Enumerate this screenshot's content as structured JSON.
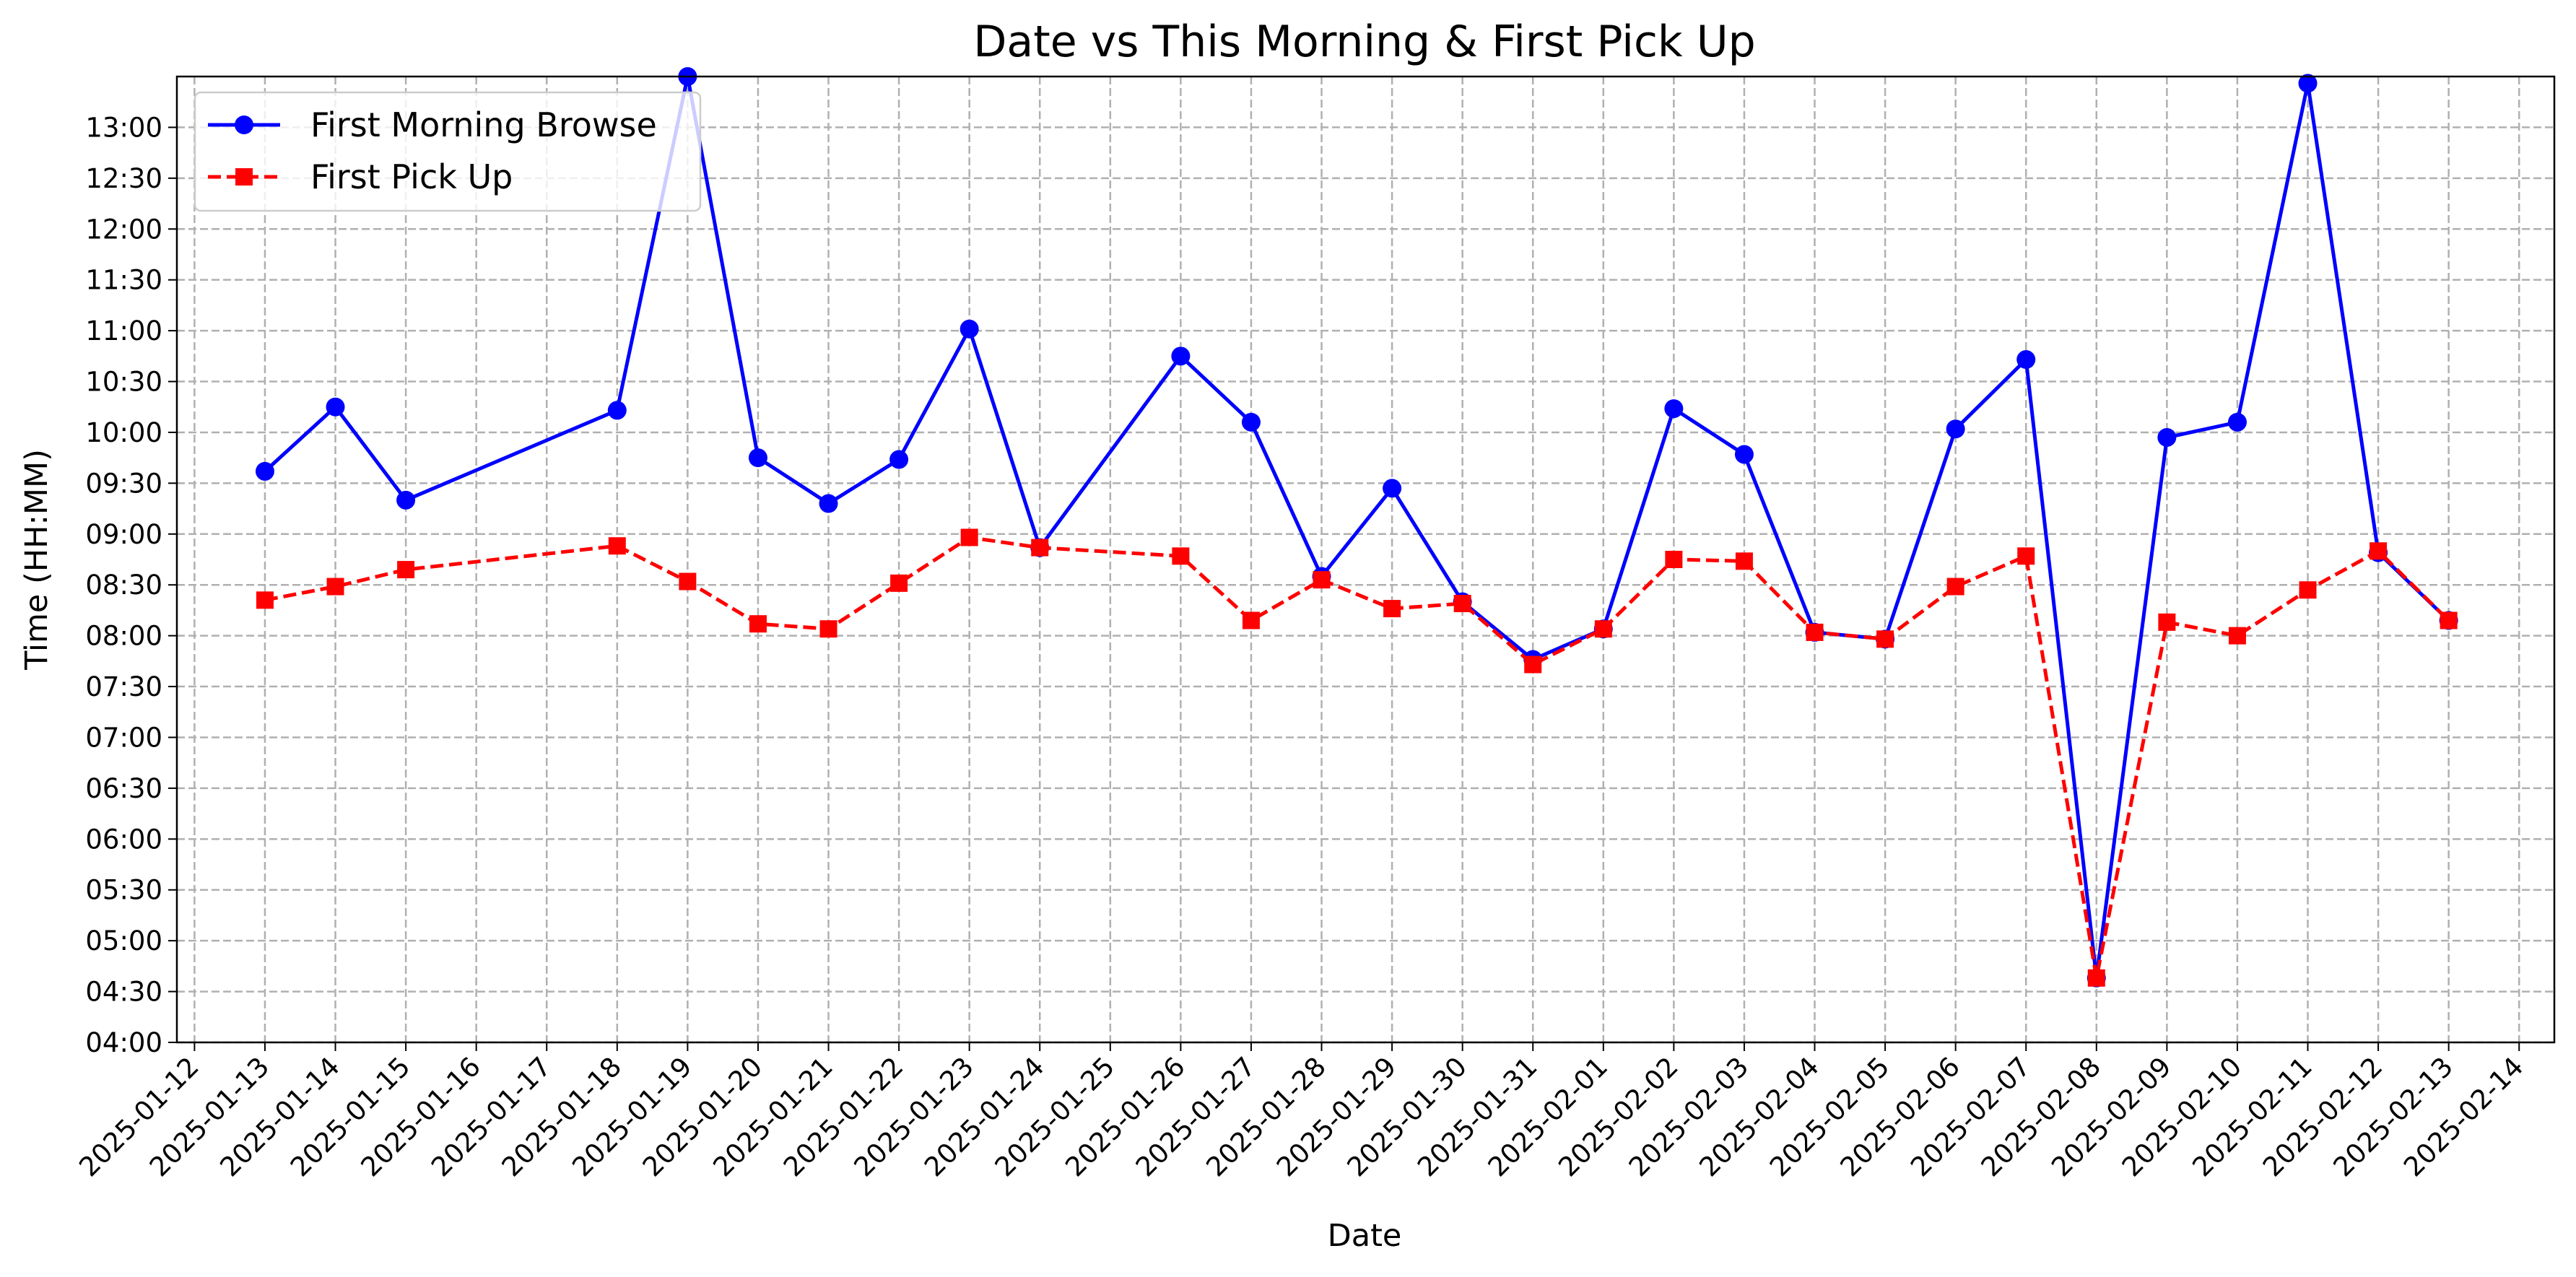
{
  "chart_data": {
    "type": "line",
    "title": "Date vs This Morning & First Pick Up",
    "xlabel": "Date",
    "ylabel": "Time (HH:MM)",
    "x_ticks": [
      "2025-01-12",
      "2025-01-13",
      "2025-01-14",
      "2025-01-15",
      "2025-01-16",
      "2025-01-17",
      "2025-01-18",
      "2025-01-19",
      "2025-01-20",
      "2025-01-21",
      "2025-01-22",
      "2025-01-23",
      "2025-01-24",
      "2025-01-25",
      "2025-01-26",
      "2025-01-27",
      "2025-01-28",
      "2025-01-29",
      "2025-01-30",
      "2025-01-31",
      "2025-02-01",
      "2025-02-02",
      "2025-02-03",
      "2025-02-04",
      "2025-02-05",
      "2025-02-06",
      "2025-02-07",
      "2025-02-08",
      "2025-02-09",
      "2025-02-10",
      "2025-02-11",
      "2025-02-12",
      "2025-02-13",
      "2025-02-14"
    ],
    "y_ticks": [
      "04:00",
      "04:30",
      "05:00",
      "05:30",
      "06:00",
      "06:30",
      "07:00",
      "07:30",
      "08:00",
      "08:30",
      "09:00",
      "09:30",
      "10:00",
      "10:30",
      "11:00",
      "11:30",
      "12:00",
      "12:30",
      "13:00"
    ],
    "xlim": [
      "2025-01-11T18:00",
      "2025-02-14T12:00"
    ],
    "ylim": [
      "04:00",
      "13:30"
    ],
    "grid": true,
    "legend_position": "top-left",
    "series": [
      {
        "name": "First Morning Browse",
        "color": "#0000ff",
        "line_style": "solid",
        "marker": "circle",
        "points": [
          [
            "2025-01-13",
            "09:37"
          ],
          [
            "2025-01-14",
            "10:15"
          ],
          [
            "2025-01-15",
            "09:20"
          ],
          [
            "2025-01-18",
            "10:13"
          ],
          [
            "2025-01-19",
            "13:30"
          ],
          [
            "2025-01-20",
            "09:45"
          ],
          [
            "2025-01-21",
            "09:18"
          ],
          [
            "2025-01-22",
            "09:44"
          ],
          [
            "2025-01-23",
            "11:01"
          ],
          [
            "2025-01-24",
            "08:52"
          ],
          [
            "2025-01-26",
            "10:45"
          ],
          [
            "2025-01-27",
            "10:06"
          ],
          [
            "2025-01-28",
            "08:35"
          ],
          [
            "2025-01-29",
            "09:27"
          ],
          [
            "2025-01-30",
            "08:20"
          ],
          [
            "2025-01-31",
            "07:46"
          ],
          [
            "2025-02-01",
            "08:04"
          ],
          [
            "2025-02-02",
            "10:14"
          ],
          [
            "2025-02-03",
            "09:47"
          ],
          [
            "2025-02-04",
            "08:02"
          ],
          [
            "2025-02-05",
            "07:58"
          ],
          [
            "2025-02-06",
            "10:02"
          ],
          [
            "2025-02-07",
            "10:43"
          ],
          [
            "2025-02-08",
            "04:38"
          ],
          [
            "2025-02-09",
            "09:57"
          ],
          [
            "2025-02-10",
            "10:06"
          ],
          [
            "2025-02-11",
            "13:26"
          ],
          [
            "2025-02-12",
            "08:49"
          ],
          [
            "2025-02-13",
            "08:09"
          ]
        ]
      },
      {
        "name": "First Pick Up",
        "color": "#ff0000",
        "line_style": "dashed",
        "marker": "square",
        "points": [
          [
            "2025-01-13",
            "08:21"
          ],
          [
            "2025-01-14",
            "08:29"
          ],
          [
            "2025-01-15",
            "08:39"
          ],
          [
            "2025-01-18",
            "08:53"
          ],
          [
            "2025-01-19",
            "08:32"
          ],
          [
            "2025-01-20",
            "08:07"
          ],
          [
            "2025-01-21",
            "08:04"
          ],
          [
            "2025-01-22",
            "08:31"
          ],
          [
            "2025-01-23",
            "08:58"
          ],
          [
            "2025-01-24",
            "08:52"
          ],
          [
            "2025-01-26",
            "08:47"
          ],
          [
            "2025-01-27",
            "08:09"
          ],
          [
            "2025-01-28",
            "08:33"
          ],
          [
            "2025-01-29",
            "08:16"
          ],
          [
            "2025-01-30",
            "08:19"
          ],
          [
            "2025-01-31",
            "07:43"
          ],
          [
            "2025-02-01",
            "08:04"
          ],
          [
            "2025-02-02",
            "08:45"
          ],
          [
            "2025-02-03",
            "08:44"
          ],
          [
            "2025-02-04",
            "08:02"
          ],
          [
            "2025-02-05",
            "07:58"
          ],
          [
            "2025-02-06",
            "08:29"
          ],
          [
            "2025-02-07",
            "08:47"
          ],
          [
            "2025-02-08",
            "04:38"
          ],
          [
            "2025-02-09",
            "08:08"
          ],
          [
            "2025-02-10",
            "08:00"
          ],
          [
            "2025-02-11",
            "08:27"
          ],
          [
            "2025-02-12",
            "08:50"
          ],
          [
            "2025-02-13",
            "08:09"
          ]
        ]
      }
    ]
  }
}
